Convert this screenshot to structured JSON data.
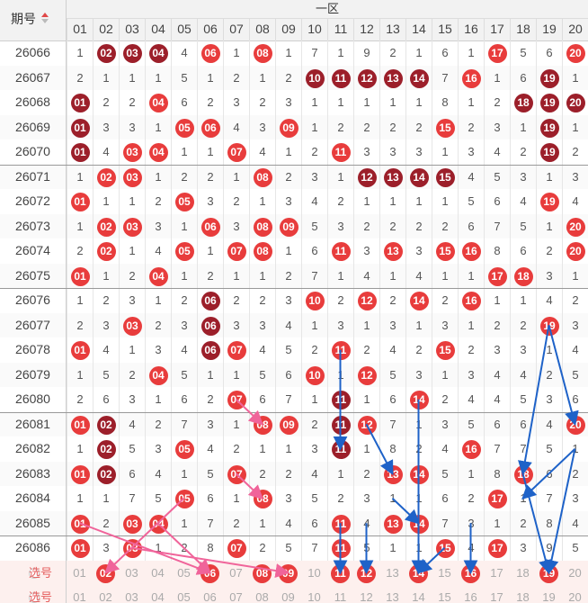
{
  "header": {
    "issue_label": "期号",
    "zone_label": "一区"
  },
  "columns": [
    "01",
    "02",
    "03",
    "04",
    "05",
    "06",
    "07",
    "08",
    "09",
    "10",
    "11",
    "12",
    "13",
    "14",
    "15",
    "16",
    "17",
    "18",
    "19",
    "20"
  ],
  "rows": [
    {
      "issue": "26066",
      "cells": [
        "1",
        "02",
        "03",
        "04",
        "4",
        "06",
        "1",
        "08",
        "1",
        "7",
        "1",
        "9",
        "2",
        "1",
        "6",
        "1",
        "17",
        "5",
        "6",
        "20"
      ],
      "balls": {
        "02": "dark",
        "03": "dark",
        "04": "dark",
        "06": "red",
        "08": "red",
        "17": "red",
        "20": "red"
      }
    },
    {
      "issue": "26067",
      "cells": [
        "2",
        "1",
        "1",
        "1",
        "5",
        "1",
        "2",
        "1",
        "2",
        "10",
        "11",
        "12",
        "13",
        "14",
        "7",
        "16",
        "1",
        "6",
        "19",
        "1"
      ],
      "balls": {
        "10": "dark",
        "11": "dark",
        "12": "dark",
        "13": "dark",
        "14": "dark",
        "16": "red",
        "19": "dark"
      }
    },
    {
      "issue": "26068",
      "cells": [
        "01",
        "2",
        "2",
        "04",
        "6",
        "2",
        "3",
        "2",
        "3",
        "1",
        "1",
        "1",
        "1",
        "1",
        "8",
        "1",
        "2",
        "18",
        "19",
        "20"
      ],
      "balls": {
        "01": "dark",
        "04": "red",
        "18": "dark",
        "19": "dark",
        "20": "dark"
      }
    },
    {
      "issue": "26069",
      "cells": [
        "01",
        "3",
        "3",
        "1",
        "05",
        "06",
        "4",
        "3",
        "09",
        "1",
        "2",
        "2",
        "2",
        "2",
        "15",
        "2",
        "3",
        "1",
        "19",
        "1"
      ],
      "balls": {
        "01": "dark",
        "05": "red",
        "06": "red",
        "09": "red",
        "15": "red",
        "19": "dark"
      }
    },
    {
      "issue": "26070",
      "cells": [
        "01",
        "4",
        "03",
        "04",
        "1",
        "1",
        "07",
        "4",
        "1",
        "2",
        "11",
        "3",
        "3",
        "3",
        "1",
        "3",
        "4",
        "2",
        "19",
        "2"
      ],
      "balls": {
        "01": "dark",
        "03": "red",
        "04": "red",
        "07": "red",
        "11": "red",
        "19": "dark"
      }
    },
    {
      "issue": "26071",
      "cells": [
        "1",
        "02",
        "03",
        "1",
        "2",
        "2",
        "1",
        "08",
        "2",
        "3",
        "1",
        "12",
        "13",
        "14",
        "15",
        "4",
        "5",
        "3",
        "1",
        "3"
      ],
      "balls": {
        "02": "red",
        "03": "red",
        "08": "red",
        "12": "dark",
        "13": "dark",
        "14": "dark",
        "15": "dark"
      }
    },
    {
      "issue": "26072",
      "cells": [
        "01",
        "1",
        "1",
        "2",
        "05",
        "3",
        "2",
        "1",
        "3",
        "4",
        "2",
        "1",
        "1",
        "1",
        "1",
        "5",
        "6",
        "4",
        "19",
        "4"
      ],
      "balls": {
        "01": "red",
        "05": "red",
        "19": "red"
      }
    },
    {
      "issue": "26073",
      "cells": [
        "1",
        "02",
        "03",
        "3",
        "1",
        "06",
        "3",
        "08",
        "09",
        "5",
        "3",
        "2",
        "2",
        "2",
        "2",
        "6",
        "7",
        "5",
        "1",
        "20"
      ],
      "balls": {
        "02": "red",
        "03": "red",
        "06": "red",
        "08": "red",
        "09": "red",
        "20": "red"
      }
    },
    {
      "issue": "26074",
      "cells": [
        "2",
        "02",
        "1",
        "4",
        "05",
        "1",
        "07",
        "08",
        "1",
        "6",
        "11",
        "3",
        "13",
        "3",
        "15",
        "16",
        "8",
        "6",
        "2",
        "20"
      ],
      "balls": {
        "02": "red",
        "05": "red",
        "07": "red",
        "08": "red",
        "11": "red",
        "13": "red",
        "15": "red",
        "16": "red",
        "20": "red"
      }
    },
    {
      "issue": "26075",
      "cells": [
        "01",
        "1",
        "2",
        "04",
        "1",
        "2",
        "1",
        "1",
        "2",
        "7",
        "1",
        "4",
        "1",
        "4",
        "1",
        "1",
        "17",
        "18",
        "3",
        "1"
      ],
      "balls": {
        "01": "red",
        "04": "red",
        "17": "red",
        "18": "red"
      }
    },
    {
      "issue": "26076",
      "cells": [
        "1",
        "2",
        "3",
        "1",
        "2",
        "06",
        "2",
        "2",
        "3",
        "10",
        "2",
        "12",
        "2",
        "14",
        "2",
        "16",
        "1",
        "1",
        "4",
        "2"
      ],
      "balls": {
        "06": "dark",
        "10": "red",
        "12": "red",
        "14": "red",
        "16": "red"
      }
    },
    {
      "issue": "26077",
      "cells": [
        "2",
        "3",
        "03",
        "2",
        "3",
        "06",
        "3",
        "3",
        "4",
        "1",
        "3",
        "1",
        "3",
        "1",
        "3",
        "1",
        "2",
        "2",
        "19",
        "3"
      ],
      "balls": {
        "03": "red",
        "06": "dark",
        "19": "red"
      }
    },
    {
      "issue": "26078",
      "cells": [
        "01",
        "4",
        "1",
        "3",
        "4",
        "06",
        "07",
        "4",
        "5",
        "2",
        "11",
        "2",
        "4",
        "2",
        "15",
        "2",
        "3",
        "3",
        "1",
        "4"
      ],
      "balls": {
        "01": "red",
        "06": "dark",
        "07": "red",
        "11": "red",
        "15": "red"
      }
    },
    {
      "issue": "26079",
      "cells": [
        "1",
        "5",
        "2",
        "04",
        "5",
        "1",
        "1",
        "5",
        "6",
        "10",
        "1",
        "12",
        "5",
        "3",
        "1",
        "3",
        "4",
        "4",
        "2",
        "5"
      ],
      "balls": {
        "04": "red",
        "10": "red",
        "12": "red"
      }
    },
    {
      "issue": "26080",
      "cells": [
        "2",
        "6",
        "3",
        "1",
        "6",
        "2",
        "07",
        "6",
        "7",
        "1",
        "11",
        "1",
        "6",
        "14",
        "2",
        "4",
        "4",
        "5",
        "3",
        "6"
      ],
      "balls": {
        "07": "red",
        "11": "dark",
        "14": "red"
      }
    },
    {
      "issue": "26081",
      "cells": [
        "01",
        "02",
        "4",
        "2",
        "7",
        "3",
        "1",
        "08",
        "09",
        "2",
        "11",
        "12",
        "7",
        "1",
        "3",
        "5",
        "6",
        "6",
        "4",
        "20"
      ],
      "balls": {
        "01": "red",
        "02": "dark",
        "08": "red",
        "09": "red",
        "11": "dark",
        "12": "red",
        "20": "red"
      }
    },
    {
      "issue": "26082",
      "cells": [
        "1",
        "02",
        "5",
        "3",
        "05",
        "4",
        "2",
        "1",
        "1",
        "3",
        "11",
        "1",
        "8",
        "2",
        "4",
        "16",
        "7",
        "7",
        "5",
        "1"
      ],
      "balls": {
        "02": "dark",
        "05": "red",
        "11": "dark",
        "16": "red"
      }
    },
    {
      "issue": "26083",
      "cells": [
        "01",
        "02",
        "6",
        "4",
        "1",
        "5",
        "07",
        "2",
        "2",
        "4",
        "1",
        "2",
        "13",
        "14",
        "5",
        "1",
        "8",
        "18",
        "6",
        "2"
      ],
      "balls": {
        "01": "red",
        "02": "dark",
        "07": "red",
        "13": "red",
        "14": "red",
        "18": "red"
      }
    },
    {
      "issue": "26084",
      "cells": [
        "1",
        "1",
        "7",
        "5",
        "05",
        "6",
        "1",
        "08",
        "3",
        "5",
        "2",
        "3",
        "1",
        "1",
        "6",
        "2",
        "17",
        "1",
        "7",
        "3"
      ],
      "balls": {
        "05": "red",
        "08": "red",
        "17": "red"
      }
    },
    {
      "issue": "26085",
      "cells": [
        "01",
        "2",
        "03",
        "04",
        "1",
        "7",
        "2",
        "1",
        "4",
        "6",
        "11",
        "4",
        "13",
        "14",
        "7",
        "3",
        "1",
        "2",
        "8",
        "4"
      ],
      "balls": {
        "01": "red",
        "03": "red",
        "04": "red",
        "11": "red",
        "13": "red",
        "14": "red"
      }
    },
    {
      "issue": "26086",
      "cells": [
        "01",
        "3",
        "03",
        "1",
        "2",
        "8",
        "07",
        "2",
        "5",
        "7",
        "11",
        "5",
        "1",
        "1",
        "15",
        "4",
        "17",
        "3",
        "9",
        "5"
      ],
      "balls": {
        "01": "red",
        "03": "red",
        "07": "red",
        "11": "red",
        "15": "red",
        "17": "red"
      }
    }
  ],
  "select_rows": [
    {
      "label": "选号",
      "selected": [
        "02",
        "06",
        "08",
        "09",
        "11",
        "12",
        "14",
        "16",
        "19"
      ]
    },
    {
      "label": "选号",
      "selected": []
    }
  ],
  "colors": {
    "ball_red": "#e83c3c",
    "ball_dark": "#9c1f2a",
    "arrow_pink": "#f0649a",
    "arrow_blue": "#1e62c8"
  }
}
